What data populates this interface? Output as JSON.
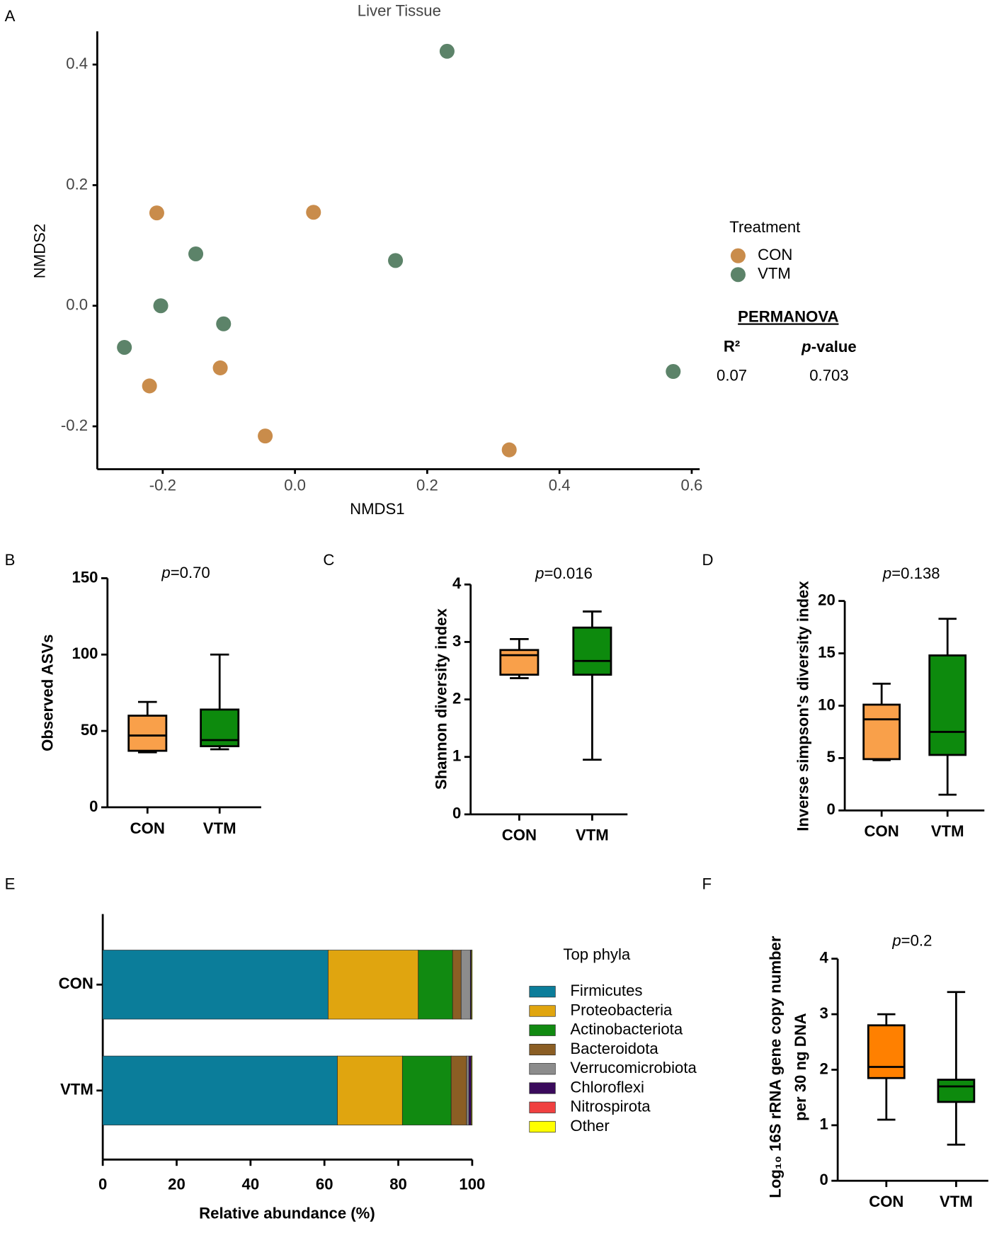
{
  "chart_data": [
    {
      "type": "scatter",
      "panel": "A",
      "title": "Liver Tissue",
      "x_label": "NMDS1",
      "y_label": "NMDS2",
      "xlim": [
        -0.299,
        0.612
      ],
      "ylim": [
        -0.271,
        0.455
      ],
      "xticks": [
        -0.2,
        {
          "value": 0,
          "label": "0.0"
        },
        0.2,
        0.4,
        0.6
      ],
      "yticks": [
        -0.2,
        {
          "value": 0,
          "label": "0.0"
        },
        0.2,
        0.4
      ],
      "legend_title": "Treatment",
      "series": [
        {
          "name": "CON",
          "color": "#c98c4b",
          "x": [
            -0.209,
            0.028,
            -0.113,
            -0.22,
            -0.045,
            0.324
          ],
          "values": [
            0.154,
            0.155,
            -0.103,
            -0.133,
            -0.216,
            -0.239
          ]
        },
        {
          "name": "VTM",
          "color": "#5c8369",
          "x": [
            0.23,
            -0.15,
            0.152,
            -0.203,
            -0.108,
            -0.258,
            0.572
          ],
          "values": [
            0.422,
            0.086,
            0.075,
            0,
            -0.03,
            -0.069,
            -0.109
          ]
        }
      ],
      "annotations": {
        "heading": "PERMANOVA",
        "r2_label": "R²",
        "p_label": "p-value",
        "r2": "0.07",
        "p": "0.703"
      }
    },
    {
      "type": "box",
      "panel": "B",
      "title": "p=0.70",
      "y_label": "Observed ASVs",
      "ylim": [
        0,
        150
      ],
      "yticks": [
        0,
        50,
        100,
        150
      ],
      "categories": [
        "CON",
        "VTM"
      ],
      "colors": [
        "#f9a04a",
        "#0d8a0d"
      ],
      "boxes": [
        {
          "min": 36,
          "q1": 37,
          "median": 47,
          "q3": 60,
          "max": 69
        },
        {
          "min": 38,
          "q1": 40,
          "median": 44,
          "q3": 64,
          "max": 100
        }
      ]
    },
    {
      "type": "box",
      "panel": "C",
      "title": "p=0.016",
      "y_label": "Shannon diversity index",
      "ylim": [
        0,
        4
      ],
      "yticks": [
        0,
        1,
        2,
        3,
        4
      ],
      "categories": [
        "CON",
        "VTM"
      ],
      "colors": [
        "#f9a04a",
        "#0d8a0d"
      ],
      "boxes": [
        {
          "min": 2.37,
          "q1": 2.43,
          "median": 2.77,
          "q3": 2.86,
          "max": 3.05
        },
        {
          "min": 0.95,
          "q1": 2.43,
          "median": 2.67,
          "q3": 3.25,
          "max": 3.53
        }
      ]
    },
    {
      "type": "box",
      "panel": "D",
      "title": "p=0.138",
      "y_label": "Inverse simpson's diversity index",
      "ylim": [
        0,
        20
      ],
      "yticks": [
        0,
        5,
        10,
        15,
        20
      ],
      "categories": [
        "CON",
        "VTM"
      ],
      "colors": [
        "#f9a04a",
        "#0d8a0d"
      ],
      "boxes": [
        {
          "min": 4.8,
          "q1": 4.9,
          "median": 8.7,
          "q3": 10.1,
          "max": 12.1
        },
        {
          "min": 1.5,
          "q1": 5.3,
          "median": 7.5,
          "q3": 14.8,
          "max": 18.3
        }
      ]
    },
    {
      "type": "stacked_bar",
      "panel": "E",
      "x_label": "Relative abundance (%)",
      "xlim": [
        0,
        100
      ],
      "xticks": [
        0,
        20,
        40,
        60,
        80,
        100
      ],
      "categories": [
        "CON",
        "VTM"
      ],
      "legend_title": "Top phyla",
      "series": [
        {
          "name": "Firmicutes",
          "color": "#0b7d9a",
          "values": [
            61.0,
            63.5
          ]
        },
        {
          "name": "Proteobacteria",
          "color": "#e0a50f",
          "values": [
            24.4,
            17.6
          ]
        },
        {
          "name": "Actinobacteriota",
          "color": "#118a11",
          "values": [
            9.3,
            13.2
          ]
        },
        {
          "name": "Bacteroidota",
          "color": "#8b5e24",
          "values": [
            2.3,
            4.2
          ]
        },
        {
          "name": "Verrucomicrobiota",
          "color": "#8c8c8c",
          "values": [
            2.5,
            0.6
          ]
        },
        {
          "name": "Chloroflexi",
          "color": "#3a0a5c",
          "values": [
            0.2,
            0.6
          ]
        },
        {
          "name": "Nitrospirota",
          "color": "#f04040",
          "values": [
            0.1,
            0.1
          ]
        },
        {
          "name": "Other",
          "color": "#ffff00",
          "values": [
            0.2,
            0.2
          ]
        }
      ]
    },
    {
      "type": "box",
      "panel": "F",
      "title": "p=0.2",
      "y_label": [
        "Log₁₀ 16S rRNA gene copy number",
        "per 30 ng DNA"
      ],
      "ylim": [
        0,
        4
      ],
      "yticks": [
        0,
        1,
        2,
        3,
        4
      ],
      "categories": [
        "CON",
        "VTM"
      ],
      "colors": [
        "#ff8000",
        "#0d8a0d"
      ],
      "boxes": [
        {
          "min": 1.1,
          "q1": 1.85,
          "median": 2.05,
          "q3": 2.8,
          "max": 3.0
        },
        {
          "min": 0.65,
          "q1": 1.42,
          "median": 1.7,
          "q3": 1.82,
          "max": 3.4
        }
      ]
    }
  ]
}
